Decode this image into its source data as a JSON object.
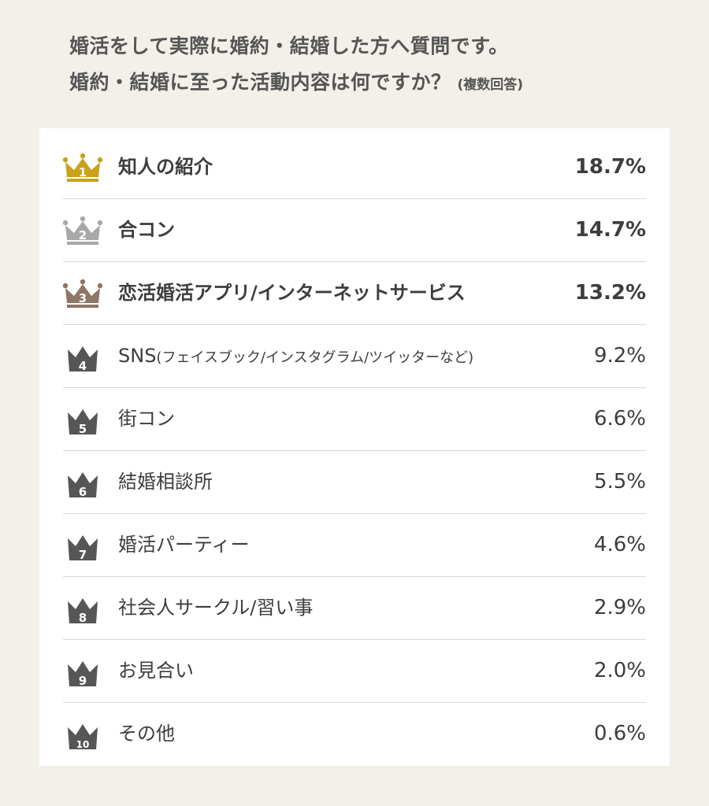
{
  "header": {
    "title_line1": "婚活をして実際に婚約・結婚した方へ質問です。",
    "title_line2": "婚約・結婚に至った活動内容は何ですか？",
    "title_note": "(複数回答)"
  },
  "colors": {
    "gold": "#c8a21a",
    "silver": "#a8a8a8",
    "bronze": "#8f7565",
    "dark": "#565656"
  },
  "chart_data": {
    "type": "table",
    "unit": "%",
    "rows": [
      {
        "rank": "1",
        "label": "知人の紹介",
        "value": 18.7,
        "value_text": "18.7%",
        "medal": "gold"
      },
      {
        "rank": "2",
        "label": "合コン",
        "value": 14.7,
        "value_text": "14.7%",
        "medal": "silver"
      },
      {
        "rank": "3",
        "label": "恋活婚活アプリ/インターネットサービス",
        "value": 13.2,
        "value_text": "13.2%",
        "medal": "bronze"
      },
      {
        "rank": "4",
        "label": "SNS",
        "label_sub": "(フェイスブック/インスタグラム/ツイッターなど)",
        "value": 9.2,
        "value_text": "9.2%",
        "medal": "dark"
      },
      {
        "rank": "5",
        "label": "街コン",
        "value": 6.6,
        "value_text": "6.6%",
        "medal": "dark"
      },
      {
        "rank": "6",
        "label": "結婚相談所",
        "value": 5.5,
        "value_text": "5.5%",
        "medal": "dark"
      },
      {
        "rank": "7",
        "label": "婚活パーティー",
        "value": 4.6,
        "value_text": "4.6%",
        "medal": "dark"
      },
      {
        "rank": "8",
        "label": "社会人サークル/習い事",
        "value": 2.9,
        "value_text": "2.9%",
        "medal": "dark"
      },
      {
        "rank": "9",
        "label": "お見合い",
        "value": 2.0,
        "value_text": "2.0%",
        "medal": "dark"
      },
      {
        "rank": "10",
        "label": "その他",
        "value": 0.6,
        "value_text": "0.6%",
        "medal": "dark"
      }
    ]
  }
}
